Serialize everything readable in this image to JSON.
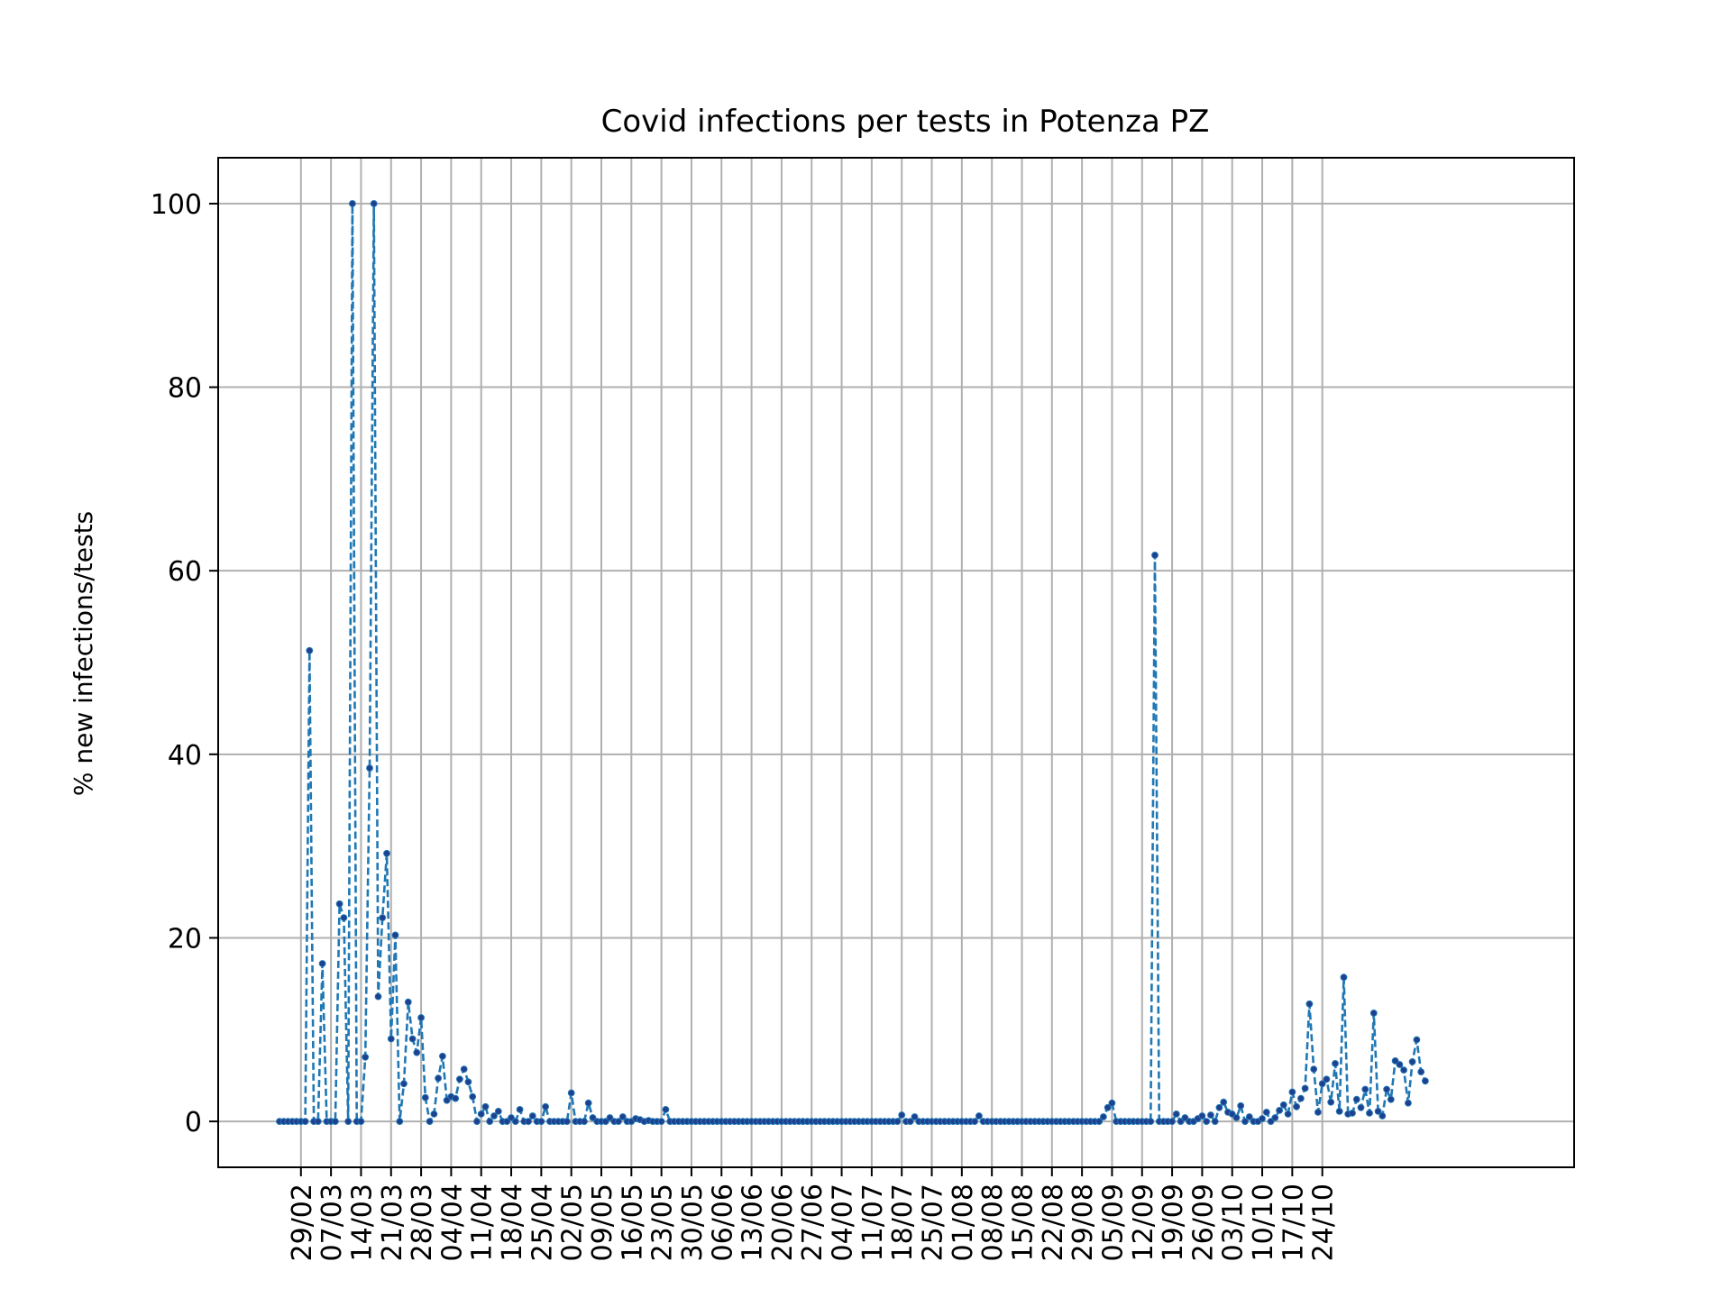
{
  "chart_data": {
    "type": "line",
    "title": "Covid infections per tests in Potenza PZ",
    "xlabel": "",
    "ylabel": "% new infections/tests",
    "ylim": [
      -5,
      105
    ],
    "yticks": [
      0,
      20,
      40,
      60,
      80,
      100
    ],
    "grid": true,
    "series_color": "#1f77b4",
    "marker_color": "#1f3f8f",
    "line_style": "dashed",
    "xticklabels": [
      "29/02",
      "07/03",
      "14/03",
      "21/03",
      "28/03",
      "04/04",
      "11/04",
      "18/04",
      "25/04",
      "02/05",
      "09/05",
      "16/05",
      "23/05",
      "30/05",
      "06/06",
      "13/06",
      "20/06",
      "27/06",
      "04/07",
      "11/07",
      "18/07",
      "25/07",
      "01/08",
      "08/08",
      "15/08",
      "22/08",
      "29/08",
      "05/09",
      "12/09",
      "19/09",
      "26/09",
      "03/10",
      "10/10",
      "17/10",
      "24/10"
    ],
    "start_date": "2020-02-24",
    "values": [
      0,
      0,
      0,
      0,
      0,
      0,
      0,
      51.3,
      0,
      0,
      17.2,
      0,
      0,
      0,
      23.7,
      22.2,
      0,
      100,
      0,
      0,
      7,
      38.5,
      100,
      13.6,
      22.2,
      29.2,
      9,
      20.3,
      0,
      4.1,
      13,
      9,
      7.5,
      11.3,
      2.6,
      0,
      0.8,
      4.7,
      7.1,
      2.3,
      2.7,
      2.5,
      4.6,
      5.7,
      4.3,
      2.7,
      0,
      0.8,
      1.6,
      0,
      0.6,
      1.1,
      0,
      0,
      0.4,
      0,
      1.3,
      0,
      0,
      0.6,
      0,
      0,
      1.6,
      0,
      0,
      0,
      0,
      0,
      3.1,
      0,
      0,
      0,
      2,
      0.4,
      0,
      0,
      0,
      0.4,
      0,
      0,
      0.5,
      0,
      0,
      0.3,
      0.2,
      0,
      0.1,
      0,
      0,
      0,
      1.3,
      0,
      0,
      0,
      0,
      0,
      0,
      0,
      0,
      0,
      0,
      0,
      0,
      0,
      0,
      0,
      0,
      0,
      0,
      0,
      0,
      0,
      0,
      0,
      0,
      0,
      0,
      0,
      0,
      0,
      0,
      0,
      0,
      0,
      0,
      0,
      0,
      0,
      0,
      0,
      0,
      0,
      0,
      0,
      0,
      0,
      0,
      0,
      0,
      0,
      0,
      0,
      0,
      0,
      0,
      0.7,
      0,
      0,
      0.5,
      0,
      0,
      0,
      0,
      0,
      0,
      0,
      0,
      0,
      0,
      0,
      0,
      0,
      0,
      0.6,
      0,
      0,
      0,
      0,
      0,
      0,
      0,
      0,
      0,
      0,
      0,
      0,
      0,
      0,
      0,
      0,
      0,
      0,
      0,
      0,
      0,
      0,
      0,
      0,
      0,
      0,
      0,
      0,
      0.5,
      1.5,
      2,
      0,
      0,
      0,
      0,
      0,
      0,
      0,
      0,
      0,
      61.7,
      0,
      0,
      0,
      0,
      0.8,
      0,
      0.4,
      0,
      0,
      0.3,
      0.6,
      0,
      0.7,
      0,
      1.5,
      2.1,
      1,
      0.8,
      0.4,
      1.7,
      0,
      0.5,
      0,
      0,
      0.3,
      1,
      0,
      0.4,
      1.2,
      1.8,
      0.8,
      3.2,
      1.6,
      2.5,
      3.6,
      12.8,
      5.7,
      1,
      4.1,
      4.6,
      2.1,
      6.3,
      1.1,
      15.7,
      0.8,
      0.9,
      2.4,
      1.5,
      3.5,
      0.9,
      11.8,
      1.1,
      0.6,
      3.5,
      2.4,
      6.6,
      6.2,
      5.6,
      2,
      6.5,
      8.9,
      5.4,
      4.4
    ]
  }
}
